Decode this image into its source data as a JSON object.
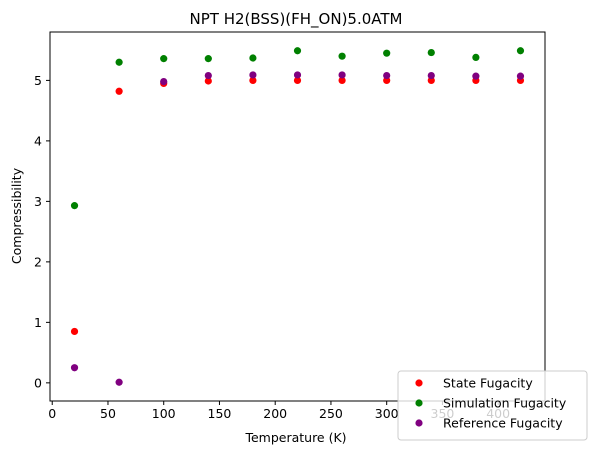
{
  "chart_data": {
    "type": "scatter",
    "title": "NPT H2(BSS)(FH_ON)5.0ATM",
    "xlabel": "Temperature (K)",
    "ylabel": "Compressibility",
    "xlim": [
      -2,
      442
    ],
    "ylim": [
      -0.3,
      5.8
    ],
    "xticks": [
      "0",
      "50",
      "100",
      "150",
      "200",
      "250",
      "300",
      "350",
      "400"
    ],
    "yticks": [
      "0",
      "1",
      "2",
      "3",
      "4",
      "5"
    ],
    "grid": false,
    "legend_position": "lower-right",
    "series": [
      {
        "name": "State Fugacity",
        "color": "#ff0000",
        "x": [
          20,
          60,
          100,
          140,
          180,
          220,
          260,
          300,
          340,
          380,
          420
        ],
        "y": [
          0.85,
          4.82,
          4.95,
          4.99,
          5.0,
          5.0,
          5.0,
          5.0,
          5.0,
          5.0,
          5.0
        ]
      },
      {
        "name": "Simulation Fugacity",
        "color": "#008000",
        "x": [
          20,
          60,
          100,
          140,
          180,
          220,
          260,
          300,
          340,
          380,
          420
        ],
        "y": [
          2.93,
          5.3,
          5.36,
          5.36,
          5.37,
          5.49,
          5.4,
          5.45,
          5.46,
          5.38,
          5.49
        ]
      },
      {
        "name": "Reference Fugacity",
        "color": "#800080",
        "x": [
          20,
          60,
          100,
          140,
          180,
          220,
          260,
          300,
          340,
          380,
          420
        ],
        "y": [
          0.25,
          0.01,
          4.98,
          5.08,
          5.09,
          5.09,
          5.09,
          5.08,
          5.08,
          5.07,
          5.07
        ]
      }
    ]
  }
}
